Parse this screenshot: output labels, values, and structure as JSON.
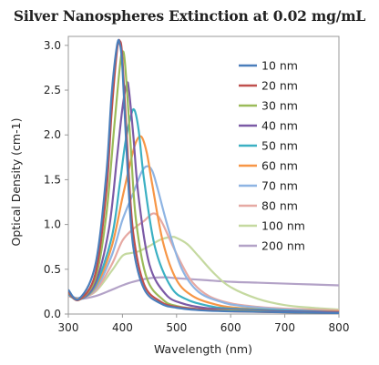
{
  "chart_data": {
    "type": "line",
    "title": "Silver Nanospheres Extinction at 0.02 mg/mL",
    "xlabel": "Wavelength (nm)",
    "ylabel": "Optical Density (cm-1)",
    "xlim": [
      300,
      800
    ],
    "ylim": [
      0,
      3.1
    ],
    "xticks": [
      300,
      400,
      500,
      600,
      700,
      800
    ],
    "yticks": [
      0.0,
      0.5,
      1.0,
      1.5,
      2.0,
      2.5,
      3.0
    ],
    "xtick_labels": [
      "300",
      "400",
      "500",
      "600",
      "700",
      "800"
    ],
    "ytick_labels": [
      "0.0",
      "0.5",
      "1.0",
      "1.5",
      "2.0",
      "2.5",
      "3.0"
    ],
    "grid": false,
    "legend_position": "right",
    "series": [
      {
        "name": "10 nm",
        "color": "#4a7ebb",
        "x": [
          300,
          320,
          350,
          370,
          380,
          390,
          395,
          400,
          410,
          420,
          440,
          470,
          500,
          550,
          600,
          700,
          800
        ],
        "y": [
          0.27,
          0.17,
          0.55,
          1.55,
          2.45,
          3.0,
          3.02,
          2.75,
          1.55,
          0.75,
          0.28,
          0.12,
          0.07,
          0.04,
          0.03,
          0.02,
          0.01
        ]
      },
      {
        "name": "20 nm",
        "color": "#c0504d",
        "x": [
          300,
          320,
          350,
          370,
          380,
          390,
          395,
          400,
          410,
          420,
          440,
          470,
          500,
          550,
          600,
          700,
          800
        ],
        "y": [
          0.25,
          0.16,
          0.45,
          1.35,
          2.25,
          2.95,
          3.05,
          2.85,
          1.75,
          0.9,
          0.33,
          0.14,
          0.08,
          0.05,
          0.03,
          0.02,
          0.01
        ]
      },
      {
        "name": "30 nm",
        "color": "#9bbb59",
        "x": [
          300,
          320,
          350,
          370,
          385,
          395,
          400,
          405,
          415,
          425,
          445,
          475,
          500,
          550,
          600,
          700,
          800
        ],
        "y": [
          0.24,
          0.16,
          0.4,
          1.1,
          2.1,
          2.75,
          2.93,
          2.78,
          1.9,
          1.05,
          0.4,
          0.16,
          0.09,
          0.05,
          0.04,
          0.02,
          0.01
        ]
      },
      {
        "name": "40 nm",
        "color": "#7b5aa6",
        "x": [
          300,
          320,
          350,
          375,
          390,
          400,
          408,
          412,
          420,
          430,
          450,
          480,
          510,
          550,
          600,
          700,
          800
        ],
        "y": [
          0.23,
          0.16,
          0.35,
          0.95,
          1.75,
          2.3,
          2.57,
          2.5,
          2.0,
          1.3,
          0.55,
          0.22,
          0.12,
          0.07,
          0.05,
          0.03,
          0.02
        ]
      },
      {
        "name": "50 nm",
        "color": "#3bb0c3",
        "x": [
          300,
          320,
          350,
          380,
          395,
          405,
          415,
          422,
          430,
          440,
          460,
          490,
          520,
          560,
          600,
          700,
          800
        ],
        "y": [
          0.22,
          0.16,
          0.32,
          0.85,
          1.45,
          1.9,
          2.2,
          2.28,
          2.05,
          1.5,
          0.75,
          0.3,
          0.16,
          0.09,
          0.06,
          0.04,
          0.02
        ]
      },
      {
        "name": "60 nm",
        "color": "#f79646",
        "x": [
          300,
          320,
          350,
          380,
          400,
          415,
          425,
          435,
          445,
          455,
          475,
          500,
          530,
          570,
          610,
          700,
          800
        ],
        "y": [
          0.22,
          0.17,
          0.3,
          0.75,
          1.3,
          1.7,
          1.92,
          1.98,
          1.8,
          1.45,
          0.8,
          0.38,
          0.2,
          0.11,
          0.07,
          0.04,
          0.03
        ]
      },
      {
        "name": "70 nm",
        "color": "#8eb4e3",
        "x": [
          300,
          320,
          350,
          380,
          400,
          420,
          435,
          445,
          455,
          465,
          485,
          510,
          540,
          580,
          620,
          700,
          800
        ],
        "y": [
          0.21,
          0.18,
          0.28,
          0.65,
          1.05,
          1.35,
          1.58,
          1.65,
          1.6,
          1.4,
          0.95,
          0.5,
          0.25,
          0.14,
          0.09,
          0.05,
          0.03
        ]
      },
      {
        "name": "80 nm",
        "color": "#e6a9a3",
        "x": [
          300,
          320,
          350,
          380,
          400,
          420,
          440,
          455,
          465,
          475,
          490,
          510,
          530,
          560,
          600,
          650,
          700,
          800
        ],
        "y": [
          0.2,
          0.18,
          0.26,
          0.55,
          0.82,
          0.95,
          1.04,
          1.12,
          1.1,
          1.0,
          0.8,
          0.55,
          0.35,
          0.2,
          0.12,
          0.08,
          0.06,
          0.04
        ]
      },
      {
        "name": "100 nm",
        "color": "#c5d9a0",
        "x": [
          300,
          320,
          350,
          380,
          400,
          415,
          430,
          450,
          470,
          490,
          500,
          520,
          540,
          570,
          600,
          650,
          700,
          750,
          800
        ],
        "y": [
          0.2,
          0.18,
          0.25,
          0.48,
          0.65,
          0.68,
          0.7,
          0.76,
          0.83,
          0.86,
          0.85,
          0.78,
          0.65,
          0.45,
          0.3,
          0.17,
          0.1,
          0.07,
          0.05
        ]
      },
      {
        "name": "200 nm",
        "color": "#b3a2c7",
        "x": [
          300,
          320,
          350,
          380,
          400,
          420,
          450,
          480,
          500,
          550,
          600,
          650,
          700,
          750,
          800
        ],
        "y": [
          0.22,
          0.17,
          0.2,
          0.27,
          0.32,
          0.36,
          0.4,
          0.41,
          0.4,
          0.38,
          0.36,
          0.35,
          0.34,
          0.33,
          0.32
        ]
      }
    ]
  }
}
